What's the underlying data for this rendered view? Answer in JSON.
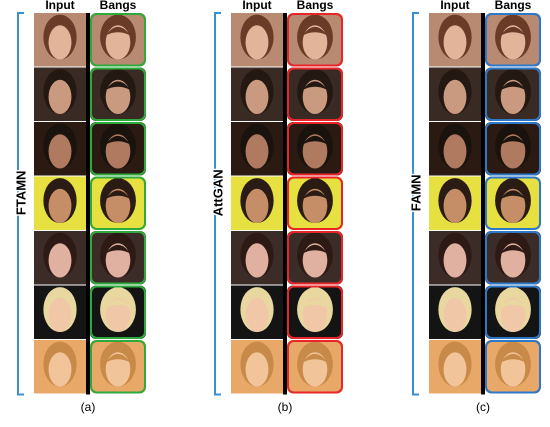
{
  "panels": [
    {
      "method": "FTAMN",
      "caption": "(a)",
      "headers": [
        "Input",
        "Bangs"
      ],
      "border_color": "#2eaa3c"
    },
    {
      "method": "AttGAN",
      "caption": "(b)",
      "headers": [
        "Input",
        "Bangs"
      ],
      "border_color": "#e8262a"
    },
    {
      "method": "FAMN",
      "caption": "(c)",
      "headers": [
        "Input",
        "Bangs"
      ],
      "border_color": "#2e78c8"
    }
  ]
}
